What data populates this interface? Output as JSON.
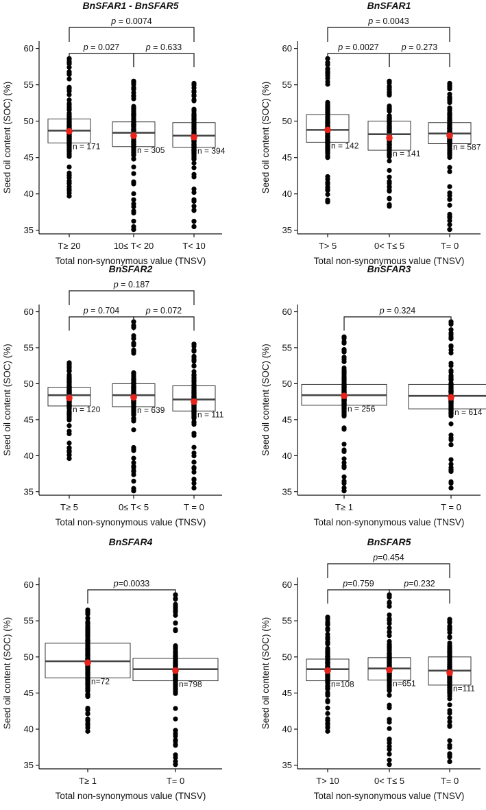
{
  "chart_data": [
    {
      "type": "boxplot",
      "title": "BnSFAR1 - BnSFAR5",
      "xlabel": "Total non-synonymous value (TNSV)",
      "ylabel": "Seed oil content (SOC) (%)",
      "ylim": [
        34.5,
        61
      ],
      "yticks": [
        35,
        40,
        45,
        50,
        55,
        60
      ],
      "categories": [
        "T≥ 20",
        "10≤ T< 20",
        "T< 10"
      ],
      "boxes": [
        {
          "q1": 47.0,
          "median": 48.7,
          "q3": 50.3,
          "mean": 48.6,
          "min": 39.7,
          "max": 58.6,
          "n_label": "n = 171"
        },
        {
          "q1": 46.5,
          "median": 48.4,
          "q3": 49.9,
          "mean": 48.0,
          "min": 35.1,
          "max": 55.5,
          "n_label": "n = 305"
        },
        {
          "q1": 46.4,
          "median": 48.0,
          "q3": 49.8,
          "mean": 47.8,
          "min": 35.5,
          "max": 55.2,
          "n_label": "n = 394"
        }
      ],
      "comparisons": [
        {
          "from": 0,
          "to": 1,
          "p_prefix": "p",
          "p_value": " = 0.027",
          "level": 0
        },
        {
          "from": 1,
          "to": 2,
          "p_prefix": "p",
          "p_value": " = 0.633",
          "level": 0
        },
        {
          "from": 0,
          "to": 2,
          "p_prefix": "p",
          "p_value": " = 0.0074",
          "level": 1
        }
      ]
    },
    {
      "type": "boxplot",
      "title": "BnSFAR1",
      "xlabel": "Total non-synonymous value (TNSV)",
      "ylabel": "Seed oil content (SOC) (%)",
      "ylim": [
        34.5,
        61
      ],
      "yticks": [
        35,
        40,
        45,
        50,
        55,
        60
      ],
      "categories": [
        "T> 5",
        "0< T≤ 5",
        "T= 0"
      ],
      "boxes": [
        {
          "q1": 47.1,
          "median": 48.8,
          "q3": 50.9,
          "mean": 48.8,
          "min": 38.9,
          "max": 58.6,
          "n_label": "n = 142"
        },
        {
          "q1": 46.0,
          "median": 48.2,
          "q3": 50.0,
          "mean": 47.7,
          "min": 38.3,
          "max": 55.5,
          "n_label": "n = 141"
        },
        {
          "q1": 46.9,
          "median": 48.3,
          "q3": 49.8,
          "mean": 48.0,
          "min": 35.1,
          "max": 55.2,
          "n_label": "n = 587"
        }
      ],
      "comparisons": [
        {
          "from": 0,
          "to": 1,
          "p_prefix": "p",
          "p_value": " = 0.0027",
          "level": 0
        },
        {
          "from": 1,
          "to": 2,
          "p_prefix": "p",
          "p_value": " = 0.273",
          "level": 0
        },
        {
          "from": 0,
          "to": 2,
          "p_prefix": "p",
          "p_value": " = 0.0043",
          "level": 1
        }
      ]
    },
    {
      "type": "boxplot",
      "title": "BnSFAR2",
      "xlabel": "Total non-synonymous value (TNSV)",
      "ylabel": "Seed oil content (SOC) (%)",
      "ylim": [
        34.5,
        61
      ],
      "yticks": [
        35,
        40,
        45,
        50,
        55,
        60
      ],
      "categories": [
        "T≥ 5",
        "0≤ T< 5",
        "T = 0"
      ],
      "boxes": [
        {
          "q1": 46.9,
          "median": 48.4,
          "q3": 49.5,
          "mean": 48.0,
          "min": 39.6,
          "max": 52.9,
          "n_label": "n = 120"
        },
        {
          "q1": 46.8,
          "median": 48.4,
          "q3": 50.0,
          "mean": 48.1,
          "min": 35.1,
          "max": 58.6,
          "n_label": "n = 639"
        },
        {
          "q1": 46.2,
          "median": 47.8,
          "q3": 49.7,
          "mean": 47.5,
          "min": 35.5,
          "max": 55.5,
          "n_label": "n = 111"
        }
      ],
      "comparisons": [
        {
          "from": 0,
          "to": 1,
          "p_prefix": "p",
          "p_value": " = 0.704",
          "level": 0
        },
        {
          "from": 1,
          "to": 2,
          "p_prefix": "p",
          "p_value": " = 0.072",
          "level": 0
        },
        {
          "from": 0,
          "to": 2,
          "p_prefix": "p",
          "p_value": " = 0.187",
          "level": 1
        }
      ]
    },
    {
      "type": "boxplot",
      "title": "BnSFAR3",
      "xlabel": "Total non-synonymous value (TNSV)",
      "ylabel": "Seed oil content (SOC) (%)",
      "ylim": [
        34.5,
        61
      ],
      "yticks": [
        35,
        40,
        45,
        50,
        55,
        60
      ],
      "categories": [
        "T≥ 1",
        "T = 0"
      ],
      "boxes": [
        {
          "q1": 47.0,
          "median": 48.4,
          "q3": 49.9,
          "mean": 48.3,
          "min": 35.1,
          "max": 56.5,
          "n_label": "n = 256"
        },
        {
          "q1": 46.5,
          "median": 48.3,
          "q3": 49.9,
          "mean": 48.1,
          "min": 35.5,
          "max": 58.6,
          "n_label": "n = 614"
        }
      ],
      "comparisons": [
        {
          "from": 0,
          "to": 1,
          "p_prefix": "p",
          "p_value": " = 0.324",
          "level": 0
        }
      ]
    },
    {
      "type": "boxplot",
      "title": "BnSFAR4",
      "xlabel": "Total non-synonymous value (TNSV)",
      "ylabel": "Seed oil content (SOC) (%)",
      "ylim": [
        34.5,
        61
      ],
      "yticks": [
        35,
        40,
        45,
        50,
        55,
        60
      ],
      "categories": [
        "T≥ 1",
        "T= 0"
      ],
      "boxes": [
        {
          "q1": 47.1,
          "median": 49.4,
          "q3": 51.9,
          "mean": 49.2,
          "min": 39.7,
          "max": 56.5,
          "n_label": "n=72"
        },
        {
          "q1": 46.7,
          "median": 48.3,
          "q3": 49.8,
          "mean": 48.1,
          "min": 35.1,
          "max": 58.6,
          "n_label": "n=798"
        }
      ],
      "comparisons": [
        {
          "from": 0,
          "to": 1,
          "p_prefix": "p",
          "p_value": "=0.0033",
          "level": 0
        }
      ]
    },
    {
      "type": "boxplot",
      "title": "BnSFAR5",
      "xlabel": "Total non-synonymous value (TNSV)",
      "ylabel": "Seed oil content (SOC) (%)",
      "ylim": [
        34.5,
        61
      ],
      "yticks": [
        35,
        40,
        45,
        50,
        55,
        60
      ],
      "categories": [
        "T> 10",
        "0< T≤ 5",
        "T= 0"
      ],
      "boxes": [
        {
          "q1": 46.7,
          "median": 48.3,
          "q3": 49.7,
          "mean": 48.1,
          "min": 39.7,
          "max": 55.5,
          "n_label": "n=108"
        },
        {
          "q1": 46.8,
          "median": 48.4,
          "q3": 49.9,
          "mean": 48.2,
          "min": 35.1,
          "max": 58.6,
          "n_label": "n=651"
        },
        {
          "q1": 46.1,
          "median": 48.1,
          "q3": 50.0,
          "mean": 47.8,
          "min": 35.5,
          "max": 55.2,
          "n_label": "n=111"
        }
      ],
      "comparisons": [
        {
          "from": 0,
          "to": 1,
          "p_prefix": "p",
          "p_value": "=0.759",
          "level": 0
        },
        {
          "from": 1,
          "to": 2,
          "p_prefix": "p",
          "p_value": "=0.232",
          "level": 0
        },
        {
          "from": 0,
          "to": 2,
          "p_prefix": "p",
          "p_value": "=0.454",
          "level": 1
        }
      ]
    }
  ],
  "colors": {
    "axis": "#111111",
    "box_stroke": "#333333",
    "median": "#444444",
    "points": "#000000",
    "mean_marker": "#e8231c",
    "background": "#ffffff"
  }
}
